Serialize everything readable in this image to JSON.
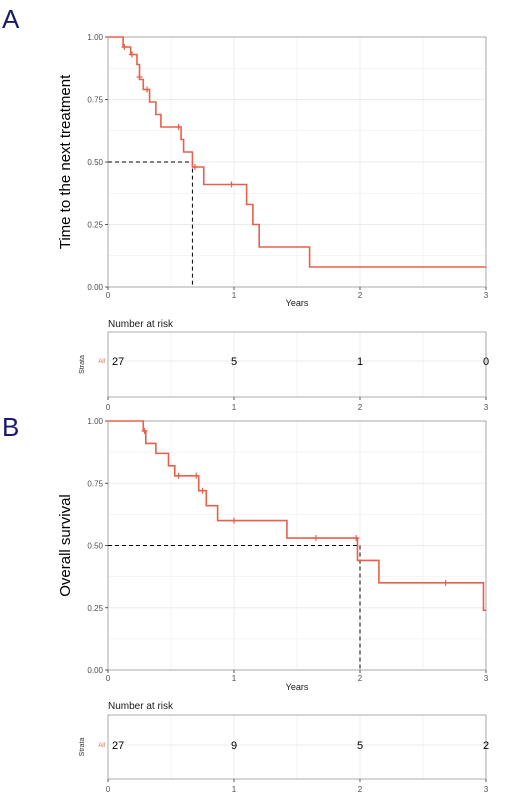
{
  "colors": {
    "curve": "#e8604c",
    "grid": "#ebebeb",
    "border": "#999999",
    "letter": "#1a1a6e"
  },
  "chart_data": [
    {
      "type": "line",
      "panel_label": "A",
      "ylabel": "Time to the next treatment",
      "xlabel": "Years",
      "xlim": [
        0,
        3
      ],
      "ylim": [
        0,
        1
      ],
      "x_ticks": [
        0,
        1,
        2,
        3
      ],
      "y_ticks": [
        0.0,
        0.25,
        0.5,
        0.75,
        1.0
      ],
      "x_tick_labels": [
        "0",
        "1",
        "2",
        "3"
      ],
      "y_tick_labels": [
        "0.00",
        "0.25",
        "0.50",
        "0.75",
        "1.00"
      ],
      "grid": true,
      "median": {
        "x": 0.67,
        "y": 0.5
      },
      "steps": [
        [
          0,
          1.0
        ],
        [
          0.12,
          0.96
        ],
        [
          0.18,
          0.93
        ],
        [
          0.23,
          0.89
        ],
        [
          0.25,
          0.83
        ],
        [
          0.28,
          0.79
        ],
        [
          0.33,
          0.74
        ],
        [
          0.38,
          0.69
        ],
        [
          0.42,
          0.64
        ],
        [
          0.58,
          0.59
        ],
        [
          0.6,
          0.54
        ],
        [
          0.67,
          0.48
        ],
        [
          0.76,
          0.41
        ],
        [
          1.1,
          0.33
        ],
        [
          1.15,
          0.25
        ],
        [
          1.2,
          0.16
        ],
        [
          1.6,
          0.08
        ],
        [
          3.0,
          0.08
        ]
      ],
      "censored": [
        [
          0.13,
          0.96
        ],
        [
          0.19,
          0.93
        ],
        [
          0.25,
          0.84
        ],
        [
          0.31,
          0.79
        ],
        [
          0.56,
          0.64
        ],
        [
          0.69,
          0.48
        ],
        [
          0.98,
          0.41
        ]
      ],
      "risk_table": {
        "title": "Number at risk",
        "strata_axis": "Strata",
        "strata_label": "All",
        "times": [
          0,
          1,
          2,
          3
        ],
        "counts": [
          "27",
          "5",
          "1",
          "0"
        ]
      }
    },
    {
      "type": "line",
      "panel_label": "B",
      "ylabel": "Overall survival",
      "xlabel": "Years",
      "xlim": [
        0,
        3
      ],
      "ylim": [
        0,
        1
      ],
      "x_ticks": [
        0,
        1,
        2,
        3
      ],
      "y_ticks": [
        0.0,
        0.25,
        0.5,
        0.75,
        1.0
      ],
      "x_tick_labels": [
        "0",
        "1",
        "2",
        "3"
      ],
      "y_tick_labels": [
        "0.00",
        "0.25",
        "0.50",
        "0.75",
        "1.00"
      ],
      "grid": true,
      "median": {
        "x": 2.0,
        "y": 0.5
      },
      "steps": [
        [
          0,
          1.0
        ],
        [
          0.28,
          0.96
        ],
        [
          0.3,
          0.91
        ],
        [
          0.38,
          0.87
        ],
        [
          0.48,
          0.82
        ],
        [
          0.53,
          0.78
        ],
        [
          0.72,
          0.72
        ],
        [
          0.78,
          0.66
        ],
        [
          0.87,
          0.6
        ],
        [
          1.42,
          0.53
        ],
        [
          1.98,
          0.44
        ],
        [
          2.15,
          0.35
        ],
        [
          2.98,
          0.24
        ],
        [
          3.0,
          0.24
        ]
      ],
      "censored": [
        [
          0.29,
          0.96
        ],
        [
          0.56,
          0.78
        ],
        [
          0.7,
          0.78
        ],
        [
          0.75,
          0.72
        ],
        [
          1.0,
          0.6
        ],
        [
          1.65,
          0.53
        ],
        [
          1.97,
          0.53
        ],
        [
          2.68,
          0.35
        ]
      ],
      "risk_table": {
        "title": "Number at risk",
        "strata_axis": "Strata",
        "strata_label": "All",
        "times": [
          0,
          1,
          2,
          3
        ],
        "counts": [
          "27",
          "9",
          "5",
          "2"
        ]
      }
    }
  ]
}
